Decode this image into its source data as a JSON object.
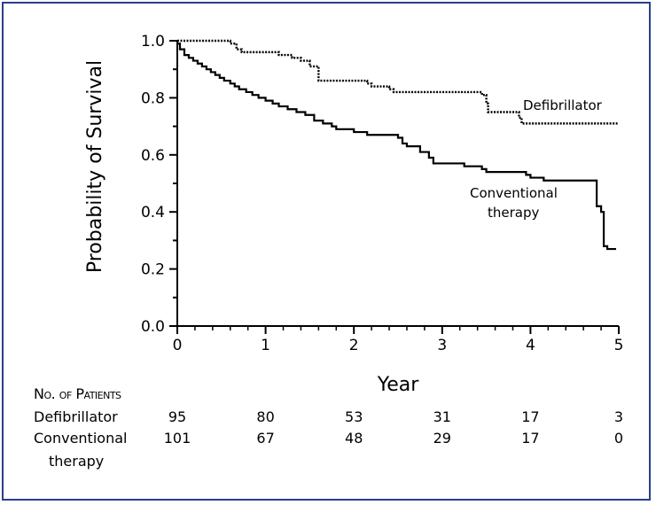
{
  "chart_data": {
    "type": "line",
    "title": "",
    "xlabel": "Year",
    "ylabel": "Probability of Survival",
    "xlim": [
      0,
      5
    ],
    "ylim": [
      0.0,
      1.0
    ],
    "x_ticks": [
      "0",
      "1",
      "2",
      "3",
      "4",
      "5"
    ],
    "y_ticks": [
      "0.0",
      "0.2",
      "0.4",
      "0.6",
      "0.8",
      "1.0"
    ],
    "grid": false,
    "series": [
      {
        "name": "Defibrillator",
        "label": "Defibrillator",
        "style": "dotted",
        "steps": [
          [
            0,
            1.0
          ],
          [
            0.6,
            0.99
          ],
          [
            0.67,
            0.97
          ],
          [
            0.73,
            0.96
          ],
          [
            1.15,
            0.95
          ],
          [
            1.3,
            0.94
          ],
          [
            1.4,
            0.93
          ],
          [
            1.5,
            0.91
          ],
          [
            1.6,
            0.89
          ],
          [
            1.6,
            0.86
          ],
          [
            2.1,
            0.86
          ],
          [
            2.15,
            0.85
          ],
          [
            2.2,
            0.84
          ],
          [
            2.4,
            0.83
          ],
          [
            2.45,
            0.82
          ],
          [
            3.0,
            0.82
          ],
          [
            3.45,
            0.81
          ],
          [
            3.5,
            0.78
          ],
          [
            3.52,
            0.75
          ],
          [
            3.85,
            0.75
          ],
          [
            3.87,
            0.73
          ],
          [
            3.9,
            0.71
          ],
          [
            5.0,
            0.71
          ]
        ]
      },
      {
        "name": "Conventional therapy",
        "label": [
          "Conventional",
          "therapy"
        ],
        "style": "solid",
        "steps": [
          [
            0,
            0.99
          ],
          [
            0.03,
            0.97
          ],
          [
            0.08,
            0.95
          ],
          [
            0.13,
            0.94
          ],
          [
            0.18,
            0.93
          ],
          [
            0.23,
            0.92
          ],
          [
            0.28,
            0.91
          ],
          [
            0.33,
            0.9
          ],
          [
            0.38,
            0.89
          ],
          [
            0.43,
            0.88
          ],
          [
            0.48,
            0.87
          ],
          [
            0.53,
            0.86
          ],
          [
            0.6,
            0.85
          ],
          [
            0.65,
            0.84
          ],
          [
            0.7,
            0.83
          ],
          [
            0.78,
            0.82
          ],
          [
            0.85,
            0.81
          ],
          [
            0.92,
            0.8
          ],
          [
            1.0,
            0.79
          ],
          [
            1.08,
            0.78
          ],
          [
            1.15,
            0.77
          ],
          [
            1.25,
            0.76
          ],
          [
            1.35,
            0.75
          ],
          [
            1.45,
            0.74
          ],
          [
            1.55,
            0.72
          ],
          [
            1.65,
            0.71
          ],
          [
            1.75,
            0.7
          ],
          [
            1.8,
            0.69
          ],
          [
            2.0,
            0.68
          ],
          [
            2.15,
            0.67
          ],
          [
            2.5,
            0.66
          ],
          [
            2.55,
            0.64
          ],
          [
            2.6,
            0.63
          ],
          [
            2.75,
            0.61
          ],
          [
            2.85,
            0.59
          ],
          [
            2.9,
            0.57
          ],
          [
            3.2,
            0.57
          ],
          [
            3.25,
            0.56
          ],
          [
            3.45,
            0.55
          ],
          [
            3.5,
            0.54
          ],
          [
            3.95,
            0.53
          ],
          [
            4.0,
            0.52
          ],
          [
            4.15,
            0.51
          ],
          [
            4.75,
            0.51
          ],
          [
            4.75,
            0.42
          ],
          [
            4.8,
            0.4
          ],
          [
            4.83,
            0.28
          ],
          [
            4.87,
            0.27
          ],
          [
            4.97,
            0.27
          ]
        ]
      }
    ],
    "risk_table": {
      "header": "No. of Patients",
      "rows": [
        {
          "label": "Defibrillator",
          "values": [
            "95",
            "80",
            "53",
            "31",
            "17",
            "3"
          ]
        },
        {
          "label": [
            "Conventional",
            "therapy"
          ],
          "values": [
            "101",
            "67",
            "48",
            "29",
            "17",
            "0"
          ]
        }
      ]
    }
  }
}
